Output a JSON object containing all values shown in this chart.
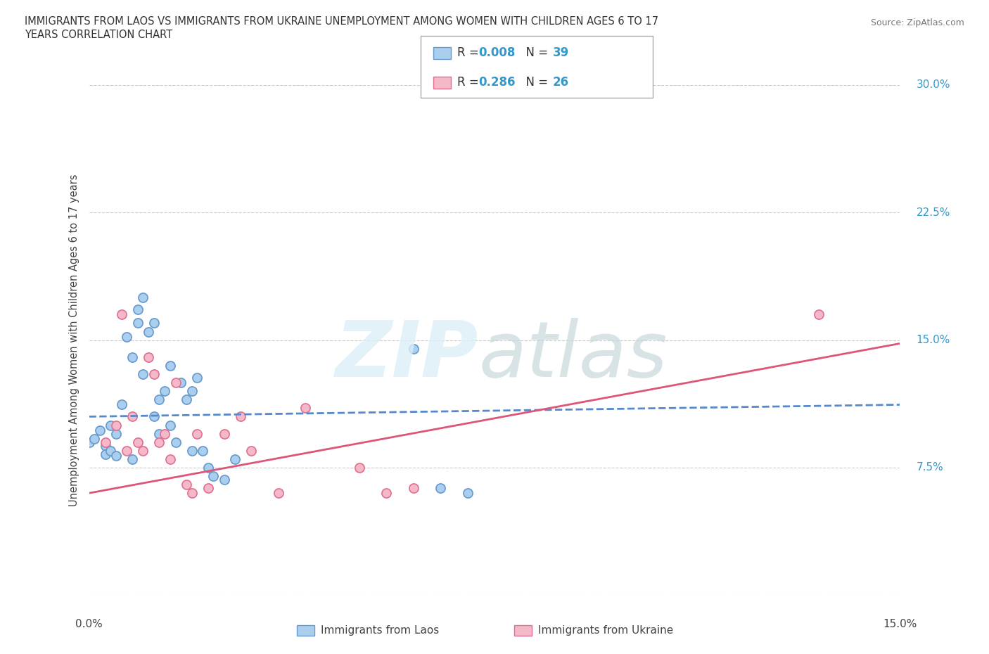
{
  "title_line1": "IMMIGRANTS FROM LAOS VS IMMIGRANTS FROM UKRAINE UNEMPLOYMENT AMONG WOMEN WITH CHILDREN AGES 6 TO 17",
  "title_line2": "YEARS CORRELATION CHART",
  "source": "Source: ZipAtlas.com",
  "ylabel": "Unemployment Among Women with Children Ages 6 to 17 years",
  "xlim": [
    0.0,
    0.15
  ],
  "ylim": [
    0.0,
    0.3
  ],
  "yticks": [
    0.0,
    0.075,
    0.15,
    0.225,
    0.3
  ],
  "ytick_labels": [
    "",
    "7.5%",
    "15.0%",
    "22.5%",
    "30.0%"
  ],
  "laos_color": "#aacfee",
  "laos_edge_color": "#6699cc",
  "ukraine_color": "#f4b8c8",
  "ukraine_edge_color": "#e07090",
  "laos_line_color": "#5588cc",
  "ukraine_line_color": "#dd5577",
  "background_color": "#ffffff",
  "laos_R": "0.008",
  "laos_N": "39",
  "ukraine_R": "0.286",
  "ukraine_N": "26",
  "legend_label1": "Immigrants from Laos",
  "legend_label2": "Immigrants from Ukraine",
  "laos_scatter": [
    [
      0.0,
      0.09
    ],
    [
      0.001,
      0.092
    ],
    [
      0.002,
      0.097
    ],
    [
      0.003,
      0.088
    ],
    [
      0.003,
      0.083
    ],
    [
      0.004,
      0.1
    ],
    [
      0.004,
      0.085
    ],
    [
      0.005,
      0.095
    ],
    [
      0.005,
      0.082
    ],
    [
      0.006,
      0.112
    ],
    [
      0.007,
      0.152
    ],
    [
      0.008,
      0.08
    ],
    [
      0.008,
      0.14
    ],
    [
      0.009,
      0.168
    ],
    [
      0.009,
      0.16
    ],
    [
      0.01,
      0.175
    ],
    [
      0.01,
      0.13
    ],
    [
      0.011,
      0.155
    ],
    [
      0.012,
      0.16
    ],
    [
      0.012,
      0.105
    ],
    [
      0.013,
      0.115
    ],
    [
      0.013,
      0.095
    ],
    [
      0.014,
      0.12
    ],
    [
      0.015,
      0.1
    ],
    [
      0.015,
      0.135
    ],
    [
      0.016,
      0.09
    ],
    [
      0.017,
      0.125
    ],
    [
      0.018,
      0.115
    ],
    [
      0.019,
      0.12
    ],
    [
      0.019,
      0.085
    ],
    [
      0.02,
      0.128
    ],
    [
      0.021,
      0.085
    ],
    [
      0.022,
      0.075
    ],
    [
      0.023,
      0.07
    ],
    [
      0.025,
      0.068
    ],
    [
      0.027,
      0.08
    ],
    [
      0.06,
      0.145
    ],
    [
      0.065,
      0.063
    ],
    [
      0.07,
      0.06
    ]
  ],
  "ukraine_scatter": [
    [
      0.003,
      0.09
    ],
    [
      0.005,
      0.1
    ],
    [
      0.006,
      0.165
    ],
    [
      0.007,
      0.085
    ],
    [
      0.008,
      0.105
    ],
    [
      0.009,
      0.09
    ],
    [
      0.01,
      0.085
    ],
    [
      0.011,
      0.14
    ],
    [
      0.012,
      0.13
    ],
    [
      0.013,
      0.09
    ],
    [
      0.014,
      0.095
    ],
    [
      0.015,
      0.08
    ],
    [
      0.016,
      0.125
    ],
    [
      0.018,
      0.065
    ],
    [
      0.019,
      0.06
    ],
    [
      0.02,
      0.095
    ],
    [
      0.022,
      0.063
    ],
    [
      0.025,
      0.095
    ],
    [
      0.028,
      0.105
    ],
    [
      0.03,
      0.085
    ],
    [
      0.035,
      0.06
    ],
    [
      0.04,
      0.11
    ],
    [
      0.05,
      0.075
    ],
    [
      0.055,
      0.06
    ],
    [
      0.06,
      0.063
    ],
    [
      0.135,
      0.165
    ]
  ],
  "laos_trend_x": [
    0.0,
    0.15
  ],
  "laos_trend_y": [
    0.105,
    0.112
  ],
  "ukraine_trend_x": [
    0.0,
    0.15
  ],
  "ukraine_trend_y": [
    0.06,
    0.148
  ]
}
